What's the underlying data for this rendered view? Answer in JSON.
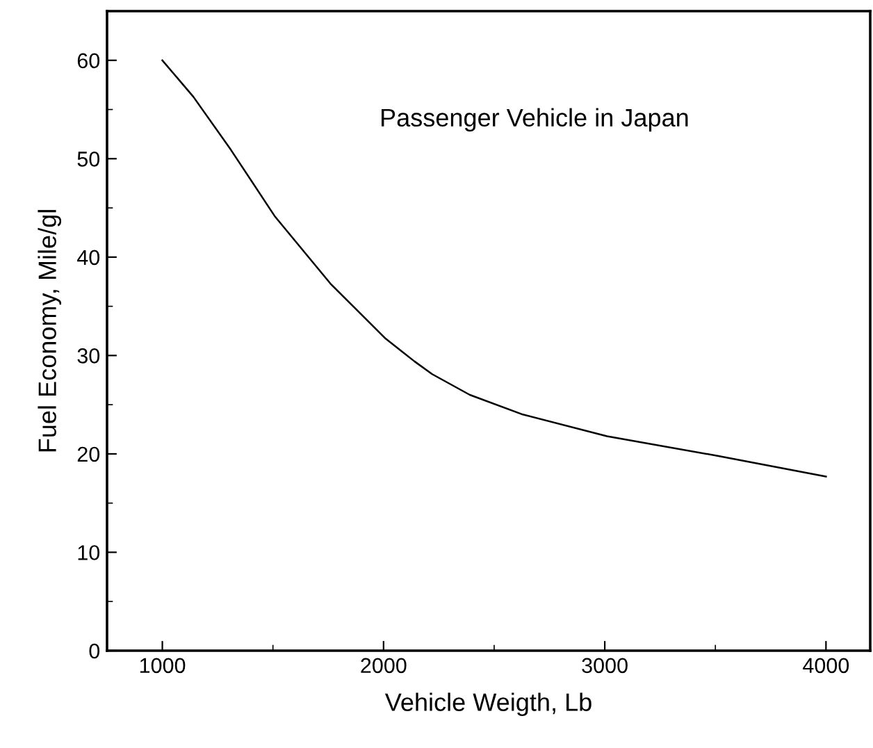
{
  "chart_data": {
    "type": "line",
    "xlabel": "Vehicle Weigth, Lb",
    "ylabel": "Fuel Economy, Mile/gl",
    "annotations": [
      "Passenger Vehicle in Japan"
    ],
    "series": [
      {
        "color": "#000000",
        "x": [
          1000,
          1140,
          1310,
          1510,
          1760,
          2010,
          2140,
          2220,
          2390,
          2630,
          3010,
          3510,
          4000
        ],
        "values": [
          60,
          56.3,
          50.9,
          44.1,
          37.3,
          31.7,
          29.4,
          28.1,
          26.0,
          24.0,
          21.8,
          19.8,
          17.7
        ]
      }
    ],
    "xlim": [
      750,
      4200
    ],
    "ylim": [
      0,
      65
    ],
    "xticks": [
      1000,
      2000,
      3000,
      4000
    ],
    "yticks": [
      0,
      10,
      20,
      30,
      40,
      50,
      60
    ],
    "grid": false,
    "legend": false,
    "marker": "none",
    "line_style": "solid"
  }
}
